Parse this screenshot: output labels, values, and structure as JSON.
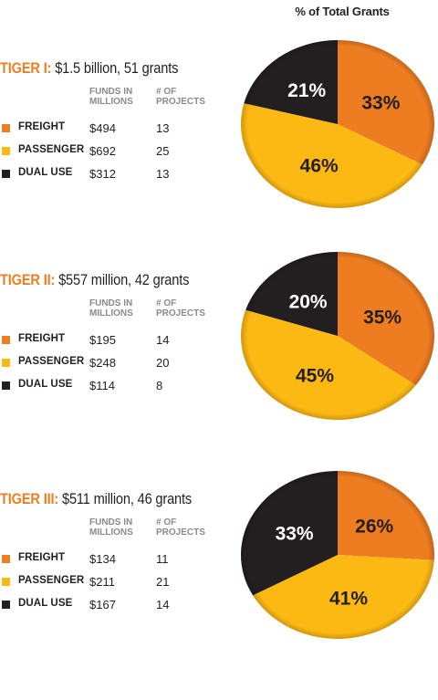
{
  "header": "% of Total Grants",
  "colors": {
    "freight": "#ee7d22",
    "passenger": "#fdb913",
    "dual_use": "#231f20",
    "accent": "#ee7d22"
  },
  "table_headers": {
    "funds": "FUNDS IN MILLIONS",
    "projects": "# OF PROJECTS"
  },
  "chart_data": [
    {
      "type": "pie",
      "title": "TIGER I:",
      "subtitle": "$1.5 billion, 51 grants",
      "categories": [
        "FREIGHT",
        "PASSENGER",
        "DUAL USE"
      ],
      "funds": [
        "$494",
        "$692",
        "$312"
      ],
      "projects": [
        "13",
        "25",
        "13"
      ],
      "values": [
        33,
        46,
        21
      ],
      "labels": [
        "33%",
        "46%",
        "21%"
      ]
    },
    {
      "type": "pie",
      "title": "TIGER II:",
      "subtitle": "$557 million, 42 grants",
      "categories": [
        "FREIGHT",
        "PASSENGER",
        "DUAL USE"
      ],
      "funds": [
        "$195",
        "$248",
        "$114"
      ],
      "projects": [
        "14",
        "20",
        "8"
      ],
      "values": [
        35,
        45,
        20
      ],
      "labels": [
        "35%",
        "45%",
        "20%"
      ]
    },
    {
      "type": "pie",
      "title": "TIGER III:",
      "subtitle": "$511 million, 46 grants",
      "categories": [
        "FREIGHT",
        "PASSENGER",
        "DUAL USE"
      ],
      "funds": [
        "$134",
        "$211",
        "$167"
      ],
      "projects": [
        "11",
        "21",
        "14"
      ],
      "values": [
        26,
        41,
        33
      ],
      "labels": [
        "26%",
        "41%",
        "33%"
      ]
    }
  ]
}
